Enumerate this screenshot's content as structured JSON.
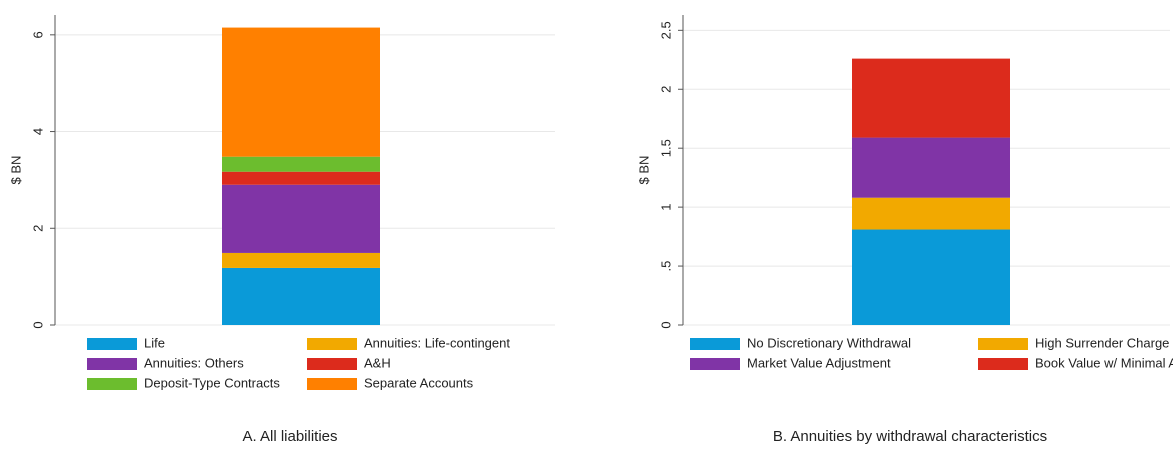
{
  "chart_data": [
    {
      "type": "bar",
      "stacked": true,
      "title": "A. All liabilities",
      "y_label": "$ BN",
      "ylim": [
        0,
        6.41
      ],
      "yticks": [
        0,
        2,
        4,
        6
      ],
      "grid": true,
      "legend": "bottom",
      "series": [
        {
          "name": "Life",
          "color": "#0a9ad8",
          "values": [
            1.18
          ]
        },
        {
          "name": "Annuities: Life-contingent",
          "color": "#f2a900",
          "values": [
            0.31
          ]
        },
        {
          "name": "Annuities: Others",
          "color": "#8034a6",
          "values": [
            1.41
          ]
        },
        {
          "name": "A&H",
          "color": "#dc2b1c",
          "values": [
            0.27
          ]
        },
        {
          "name": "Deposit-Type Contracts",
          "color": "#6cbd2e",
          "values": [
            0.31
          ]
        },
        {
          "name": "Separate Accounts",
          "color": "#ff8000",
          "values": [
            2.67
          ]
        }
      ]
    },
    {
      "type": "bar",
      "stacked": true,
      "title": "B. Annuities by withdrawal characteristics",
      "y_label": "$ BN",
      "ylim": [
        0,
        2.63
      ],
      "yticks": [
        0,
        {
          "value": 0.5,
          "label": ".5"
        },
        1,
        1.5,
        2,
        2.5
      ],
      "grid": true,
      "legend": "bottom",
      "series": [
        {
          "name": "No Discretionary Withdrawal",
          "color": "#0a9ad8",
          "values": [
            0.81
          ]
        },
        {
          "name": "High Surrender Charge",
          "color": "#f2a900",
          "values": [
            0.27
          ]
        },
        {
          "name": "Market Value Adjustment",
          "color": "#8034a6",
          "values": [
            0.51
          ]
        },
        {
          "name": "Book Value w/ Minimal Adjustment",
          "color": "#dc2b1c",
          "values": [
            0.67
          ]
        }
      ]
    }
  ]
}
